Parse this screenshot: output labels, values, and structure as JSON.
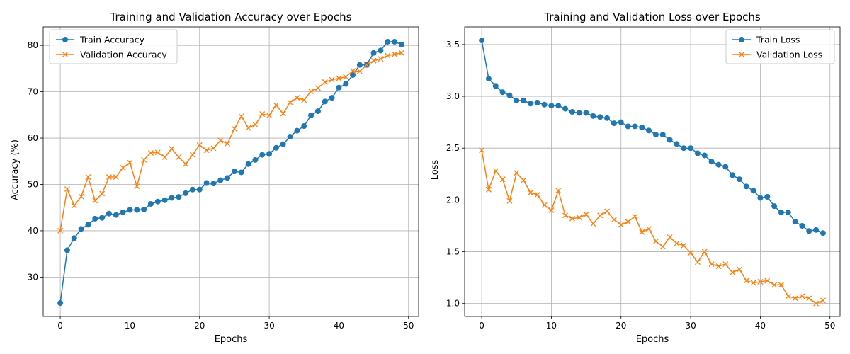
{
  "chart_data": [
    {
      "type": "line",
      "title": "Training and Validation Accuracy over Epochs",
      "xlabel": "Epochs",
      "ylabel": "Accuracy (%)",
      "xlim": [
        -2.45,
        51.45
      ],
      "ylim": [
        21.5,
        84
      ],
      "xticks": [
        0,
        10,
        20,
        30,
        40,
        50
      ],
      "yticks": [
        30,
        40,
        50,
        60,
        70,
        80
      ],
      "grid": true,
      "legend_position": "upper-left",
      "x": [
        0,
        1,
        2,
        3,
        4,
        5,
        6,
        7,
        8,
        9,
        10,
        11,
        12,
        13,
        14,
        15,
        16,
        17,
        18,
        19,
        20,
        21,
        22,
        23,
        24,
        25,
        26,
        27,
        28,
        29,
        30,
        31,
        32,
        33,
        34,
        35,
        36,
        37,
        38,
        39,
        40,
        41,
        42,
        43,
        44,
        45,
        46,
        47,
        48,
        49
      ],
      "series": [
        {
          "name": "Train Accuracy",
          "color": "#1f77b4",
          "marker": "circle",
          "values": [
            24.4,
            35.8,
            38.4,
            40.4,
            41.3,
            42.6,
            42.8,
            43.7,
            43.4,
            44.0,
            44.5,
            44.5,
            44.6,
            45.8,
            46.3,
            46.6,
            47.1,
            47.3,
            48.1,
            48.9,
            48.9,
            50.3,
            50.2,
            50.9,
            51.4,
            52.8,
            52.6,
            54.4,
            55.3,
            56.4,
            56.6,
            57.9,
            58.7,
            60.3,
            61.6,
            62.6,
            64.9,
            65.8,
            67.9,
            68.7,
            70.9,
            71.7,
            73.6,
            75.8,
            75.8,
            78.4,
            78.9,
            80.8,
            80.8,
            80.2
          ]
        },
        {
          "name": "Validation Accuracy",
          "color": "#ff7f0e",
          "marker": "x",
          "values": [
            40.0,
            49.0,
            45.4,
            47.4,
            51.6,
            46.5,
            48.0,
            51.6,
            51.6,
            53.6,
            54.7,
            49.6,
            55.3,
            56.8,
            56.9,
            55.9,
            57.7,
            55.9,
            54.4,
            56.4,
            58.5,
            57.4,
            57.8,
            59.5,
            58.8,
            62.0,
            64.7,
            62.2,
            62.9,
            65.2,
            64.9,
            67.1,
            65.3,
            67.7,
            68.7,
            68.2,
            70.1,
            70.8,
            72.1,
            72.6,
            72.9,
            73.2,
            74.5,
            74.4,
            75.8,
            76.7,
            77.1,
            77.8,
            78.1,
            78.4
          ]
        }
      ]
    },
    {
      "type": "line",
      "title": "Training and Validation Loss over Epochs",
      "xlabel": "Epochs",
      "ylabel": "Loss",
      "xlim": [
        -2.45,
        51.45
      ],
      "ylim": [
        0.875,
        3.67
      ],
      "xticks": [
        0,
        10,
        20,
        30,
        40,
        50
      ],
      "yticks": [
        1.0,
        1.5,
        2.0,
        2.5,
        3.0,
        3.5
      ],
      "ytick_labels": [
        "1.0",
        "1.5",
        "2.0",
        "2.5",
        "3.0",
        "3.5"
      ],
      "grid": true,
      "legend_position": "upper-right",
      "x": [
        0,
        1,
        2,
        3,
        4,
        5,
        6,
        7,
        8,
        9,
        10,
        11,
        12,
        13,
        14,
        15,
        16,
        17,
        18,
        19,
        20,
        21,
        22,
        23,
        24,
        25,
        26,
        27,
        28,
        29,
        30,
        31,
        32,
        33,
        34,
        35,
        36,
        37,
        38,
        39,
        40,
        41,
        42,
        43,
        44,
        45,
        46,
        47,
        48,
        49
      ],
      "series": [
        {
          "name": "Train Loss",
          "color": "#1f77b4",
          "marker": "circle",
          "values": [
            3.54,
            3.17,
            3.1,
            3.04,
            3.01,
            2.96,
            2.96,
            2.93,
            2.94,
            2.92,
            2.91,
            2.91,
            2.88,
            2.85,
            2.84,
            2.84,
            2.81,
            2.8,
            2.79,
            2.74,
            2.75,
            2.71,
            2.71,
            2.7,
            2.67,
            2.63,
            2.63,
            2.58,
            2.54,
            2.5,
            2.5,
            2.45,
            2.43,
            2.37,
            2.34,
            2.32,
            2.24,
            2.2,
            2.13,
            2.09,
            2.02,
            2.03,
            1.94,
            1.88,
            1.88,
            1.79,
            1.75,
            1.7,
            1.71,
            1.68
          ]
        },
        {
          "name": "Validation Loss",
          "color": "#ff7f0e",
          "marker": "x",
          "values": [
            2.48,
            2.1,
            2.28,
            2.2,
            1.99,
            2.26,
            2.19,
            2.07,
            2.05,
            1.95,
            1.9,
            2.09,
            1.85,
            1.82,
            1.83,
            1.86,
            1.77,
            1.85,
            1.89,
            1.81,
            1.76,
            1.79,
            1.84,
            1.69,
            1.72,
            1.6,
            1.55,
            1.64,
            1.58,
            1.56,
            1.49,
            1.4,
            1.5,
            1.38,
            1.36,
            1.38,
            1.3,
            1.33,
            1.22,
            1.2,
            1.21,
            1.22,
            1.18,
            1.18,
            1.07,
            1.05,
            1.07,
            1.05,
            1.0,
            1.03
          ]
        }
      ]
    }
  ]
}
